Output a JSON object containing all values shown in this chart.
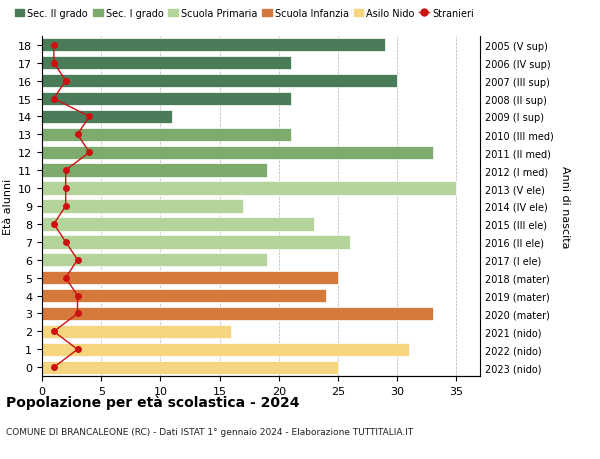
{
  "ages": [
    18,
    17,
    16,
    15,
    14,
    13,
    12,
    11,
    10,
    9,
    8,
    7,
    6,
    5,
    4,
    3,
    2,
    1,
    0
  ],
  "years": [
    "2005 (V sup)",
    "2006 (IV sup)",
    "2007 (III sup)",
    "2008 (II sup)",
    "2009 (I sup)",
    "2010 (III med)",
    "2011 (II med)",
    "2012 (I med)",
    "2013 (V ele)",
    "2014 (IV ele)",
    "2015 (III ele)",
    "2016 (II ele)",
    "2017 (I ele)",
    "2018 (mater)",
    "2019 (mater)",
    "2020 (mater)",
    "2021 (nido)",
    "2022 (nido)",
    "2023 (nido)"
  ],
  "values": [
    29,
    21,
    30,
    21,
    11,
    21,
    33,
    19,
    35,
    17,
    23,
    26,
    19,
    25,
    24,
    33,
    16,
    31,
    25
  ],
  "stranieri": [
    1,
    1,
    2,
    1,
    4,
    3,
    4,
    2,
    2,
    2,
    1,
    2,
    3,
    2,
    3,
    3,
    1,
    3,
    1
  ],
  "colors": {
    "sec2": "#4a7c59",
    "sec1": "#7dab6e",
    "primaria": "#b5d49b",
    "infanzia": "#d4783c",
    "nido": "#f5d580",
    "stranieri": "#cc1111"
  },
  "legend_labels": [
    "Sec. II grado",
    "Sec. I grado",
    "Scuola Primaria",
    "Scuola Infanzia",
    "Asilo Nido",
    "Stranieri"
  ],
  "legend_colors": [
    "#4a7c59",
    "#7dab6e",
    "#b5d49b",
    "#d4783c",
    "#f5d580",
    "#cc1111"
  ],
  "title": "Popolazione per età scolastica - 2024",
  "subtitle": "COMUNE DI BRANCALEONE (RC) - Dati ISTAT 1° gennaio 2024 - Elaborazione TUTTITALIA.IT",
  "ylabel_left": "Età alunni",
  "ylabel_right": "Anni di nascita",
  "xlim": [
    0,
    37
  ],
  "xticks": [
    0,
    5,
    10,
    15,
    20,
    25,
    30,
    35
  ]
}
